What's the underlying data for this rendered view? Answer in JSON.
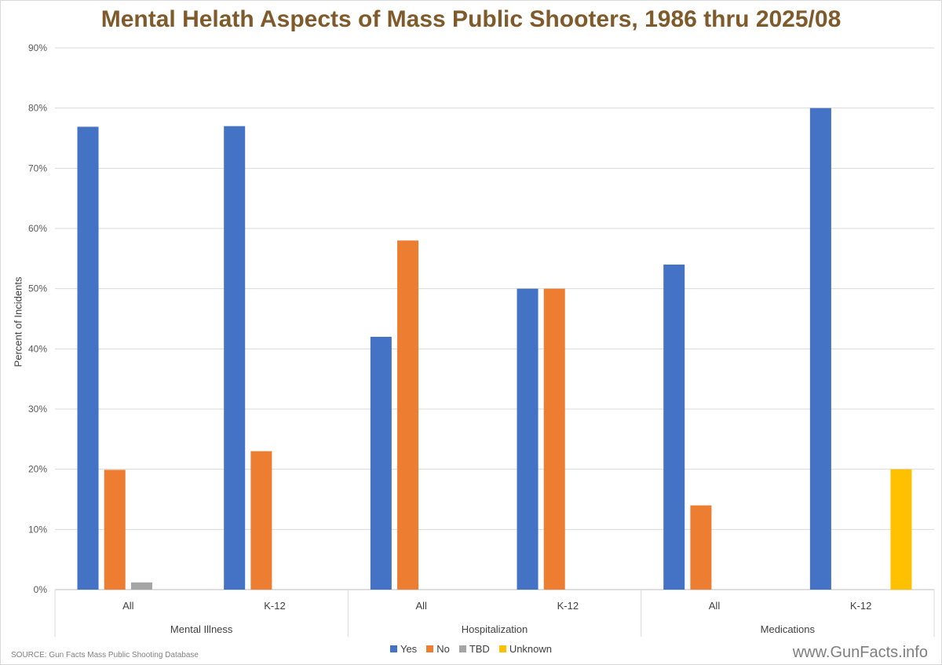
{
  "title": "Mental Helath Aspects of Mass Public Shooters, 1986 thru 2025/08",
  "source": "SOURCE:  Gun Facts Mass Public Shooting Database",
  "watermark": "www.GunFacts.info",
  "chart_data": {
    "type": "bar",
    "title": "Mental Helath Aspects of Mass Public Shooters, 1986 thru 2025/08",
    "ylabel": "Percent of Incidents",
    "xlabel": "",
    "ylim": [
      0,
      90
    ],
    "yticks": [
      "0%",
      "10%",
      "20%",
      "30%",
      "40%",
      "50%",
      "60%",
      "70%",
      "80%",
      "90%"
    ],
    "grid": true,
    "legend_position": "bottom",
    "groups": [
      "Mental Illness",
      "Hospitalization",
      "Medications"
    ],
    "categories": [
      {
        "group": "Mental Illness",
        "label": "All"
      },
      {
        "group": "Mental Illness",
        "label": "K-12"
      },
      {
        "group": "Hospitalization",
        "label": "All"
      },
      {
        "group": "Hospitalization",
        "label": "K-12"
      },
      {
        "group": "Medications",
        "label": "All"
      },
      {
        "group": "Medications",
        "label": "K-12"
      }
    ],
    "series": [
      {
        "name": "Yes",
        "color": "#4472c4",
        "values": [
          76.9,
          77,
          42,
          50,
          54,
          80
        ]
      },
      {
        "name": "No",
        "color": "#ed7d31",
        "values": [
          19.9,
          23,
          58,
          50,
          14,
          0
        ]
      },
      {
        "name": "TBD",
        "color": "#a5a5a5",
        "values": [
          1.2,
          0,
          0,
          0,
          0,
          0
        ]
      },
      {
        "name": "Unknown",
        "color": "#ffc000",
        "values": [
          0,
          0,
          0,
          0,
          0,
          20
        ]
      }
    ]
  }
}
